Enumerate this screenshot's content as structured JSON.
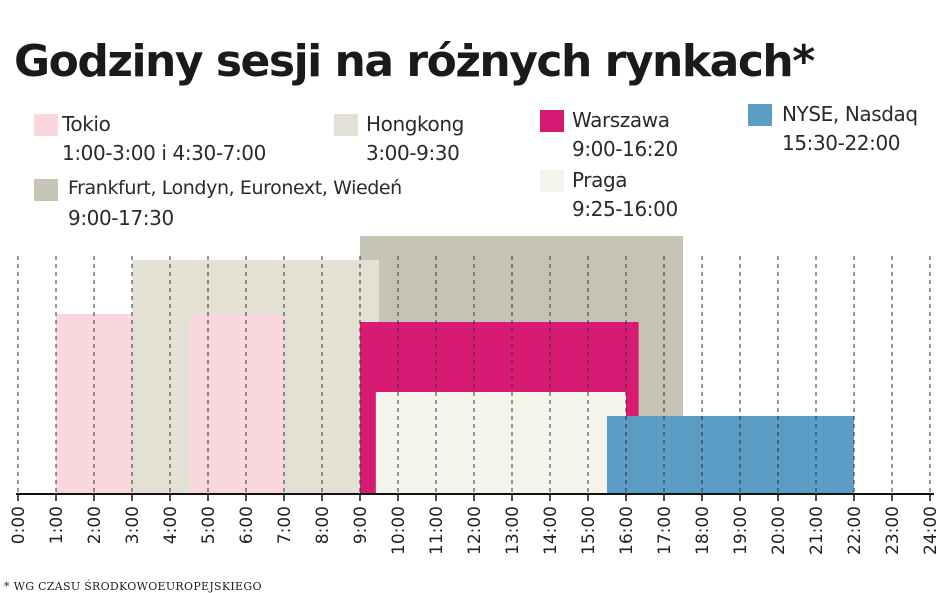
{
  "title": "Godziny sesji na różnych rynkach*",
  "footnote": "* WG CZASU ŚRODKOWOEUROPEJSKIEGO",
  "legend": [
    {
      "name": "Tokio",
      "hours": "1:00-3:00 i 4:30-7:00",
      "color": "#f9d7dc"
    },
    {
      "name": "Hongkong",
      "hours": "3:00-9:30",
      "color": "#e2e1d4"
    },
    {
      "name": "Warszawa",
      "hours": "9:00-16:20",
      "color": "#d81b72"
    },
    {
      "name": "NYSE, Nasdaq",
      "hours": "15:30-22:00",
      "color": "#5b9dc4"
    },
    {
      "name": "Frankfurt, Londyn, Euronext, Wiedeń",
      "hours": "9:00-17:30",
      "color": "#c6c5b5"
    },
    {
      "name": "Praga",
      "hours": "9:25-16:00",
      "color": "#f4f4ed"
    }
  ],
  "chart_data": {
    "type": "bar",
    "orientation": "horizontal time ranges",
    "x_unit": "hour of day",
    "xlim": [
      0,
      24
    ],
    "x_ticks": [
      "0:00",
      "1:00",
      "2:00",
      "3:00",
      "4:00",
      "5:00",
      "6:00",
      "7:00",
      "8:00",
      "9:00",
      "10:00",
      "11:00",
      "12:00",
      "13:00",
      "14:00",
      "15:00",
      "16:00",
      "17:00",
      "18:00",
      "19:00",
      "20:00",
      "21:00",
      "22:00",
      "23:00",
      "24:00"
    ],
    "series": [
      {
        "name": "Frankfurt, Londyn, Euronext, Wiedeń",
        "ranges": [
          [
            9.0,
            17.5
          ]
        ]
      },
      {
        "name": "Hongkong",
        "ranges": [
          [
            3.0,
            9.5
          ]
        ]
      },
      {
        "name": "Tokio",
        "ranges": [
          [
            1.0,
            3.0
          ],
          [
            4.5,
            7.0
          ]
        ]
      },
      {
        "name": "Warszawa",
        "ranges": [
          [
            9.0,
            16.333
          ]
        ]
      },
      {
        "name": "Praga",
        "ranges": [
          [
            9.417,
            16.0
          ]
        ]
      },
      {
        "name": "NYSE, Nasdaq",
        "ranges": [
          [
            15.5,
            22.0
          ]
        ]
      }
    ]
  }
}
